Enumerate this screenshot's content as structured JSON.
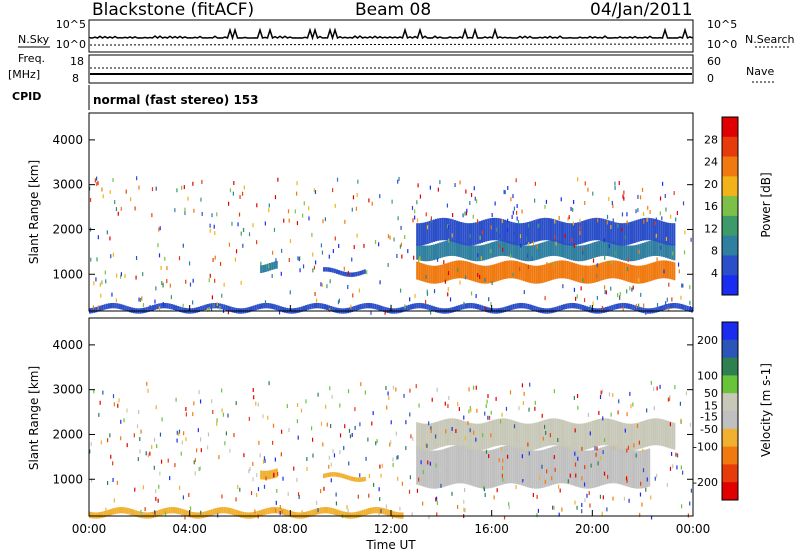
{
  "header": {
    "station": "Blackstone (fitACF)",
    "beam": "Beam 08",
    "date": "04/Jan/2011"
  },
  "side_labels": {
    "nsky": "N.Sky",
    "nsearch": "N.Search",
    "freq_line1": "Freq.",
    "freq_line2": "[MHz]",
    "nave": "Nave",
    "cpid": "CPID"
  },
  "cpid_text": "normal (fast stereo) 153",
  "noise_axis": {
    "left": [
      "10^5",
      "10^0"
    ],
    "right": [
      "10^5",
      "10^0"
    ]
  },
  "freq_axis": {
    "left": [
      "18",
      "8"
    ],
    "right": [
      "60",
      "0"
    ]
  },
  "time_ticks": [
    "00:00",
    "04:00",
    "08:00",
    "12:00",
    "16:00",
    "20:00",
    "00:00"
  ],
  "xlabel": "Time UT",
  "colors": {
    "power_scale": [
      "#1a2cf0",
      "#2b4fc8",
      "#2f7fa0",
      "#3c9a6b",
      "#7cc04a",
      "#f2b21a",
      "#f07a10",
      "#e83b0c",
      "#e00000"
    ],
    "velocity_scale": [
      "#1a2cf0",
      "#2b55b8",
      "#2f8050",
      "#69c43a",
      "#c8c8b8",
      "#c0c0c0",
      "#f0b030",
      "#f07a10",
      "#e83b0c",
      "#e00000"
    ]
  },
  "chart_data": [
    {
      "type": "heatmap",
      "name": "power-panel",
      "ylabel": "Slant Range [km]",
      "ylim": [
        180,
        4600
      ],
      "yticks": [
        1000,
        2000,
        3000,
        4000
      ],
      "xlim": [
        0,
        24
      ],
      "colorbar_label": "Power [dB]",
      "colorbar_ticks": [
        4,
        8,
        12,
        16,
        20,
        24,
        28
      ],
      "colorbar_range": [
        0,
        32
      ],
      "bands": [
        {
          "t_start": 13.0,
          "t_end": 23.3,
          "range_lower": 850,
          "range_upper": 1250,
          "value": 24
        },
        {
          "t_start": 13.0,
          "t_end": 23.3,
          "range_lower": 1350,
          "range_upper": 1700,
          "value": 8
        },
        {
          "t_start": 13.0,
          "t_end": 23.3,
          "range_lower": 1700,
          "range_upper": 2200,
          "value": 6
        },
        {
          "t_start": 6.8,
          "t_end": 7.5,
          "range_lower": 1080,
          "range_upper": 1250,
          "value": 8
        },
        {
          "t_start": 9.3,
          "t_end": 11.0,
          "range_lower": 1000,
          "range_upper": 1100,
          "value": 6
        },
        {
          "t_start": 0.0,
          "t_end": 24.0,
          "range_lower": 180,
          "range_upper": 300,
          "value": 5
        }
      ]
    },
    {
      "type": "heatmap",
      "name": "velocity-panel",
      "ylabel": "Slant Range [km]",
      "ylim": [
        180,
        4600
      ],
      "yticks": [
        1000,
        2000,
        3000,
        4000
      ],
      "xlim": [
        0,
        24
      ],
      "colorbar_label": "Velocity [m s-1]",
      "colorbar_ticks": [
        200,
        100,
        50,
        15,
        -15,
        -50,
        -100,
        -200
      ],
      "colorbar_range": [
        -250,
        250
      ],
      "bands": [
        {
          "t_start": 13.0,
          "t_end": 22.3,
          "range_lower": 850,
          "range_upper": 1700,
          "value": 0
        },
        {
          "t_start": 13.0,
          "t_end": 23.3,
          "range_lower": 1700,
          "range_upper": 2300,
          "value": 5
        },
        {
          "t_start": 6.8,
          "t_end": 7.5,
          "range_lower": 1050,
          "range_upper": 1250,
          "value": -50
        },
        {
          "t_start": 9.3,
          "t_end": 11.0,
          "range_lower": 1000,
          "range_upper": 1100,
          "value": -50
        },
        {
          "t_start": 0.0,
          "t_end": 12.5,
          "range_lower": 180,
          "range_upper": 320,
          "value": -50
        }
      ]
    }
  ]
}
